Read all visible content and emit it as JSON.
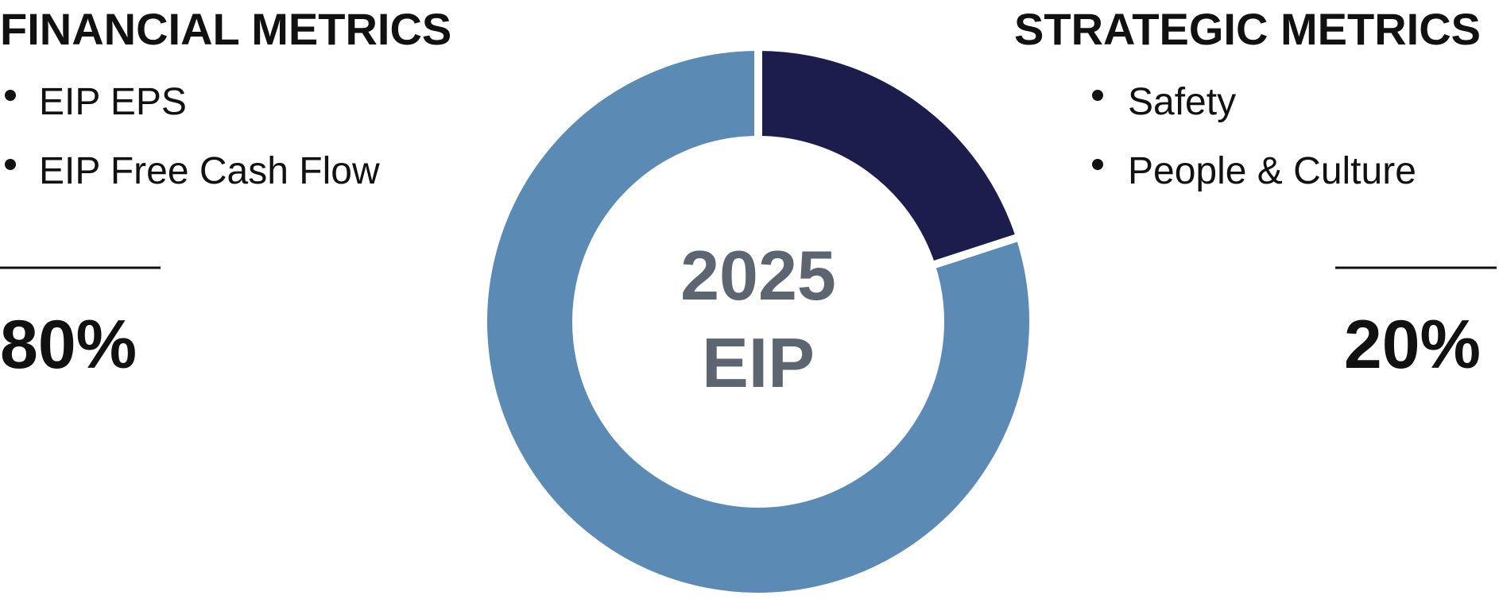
{
  "chart_data": {
    "type": "donut",
    "center_text": [
      "2025",
      "EIP"
    ],
    "categories": [
      "FINANCIAL METRICS",
      "STRATEGIC METRICS"
    ],
    "values": [
      80,
      20
    ],
    "value_labels": [
      "80%",
      "20%"
    ],
    "colors": [
      "#5b8bb5",
      "#1c1d4c"
    ],
    "details": [
      [
        "EIP EPS",
        "EIP Free Cash Flow"
      ],
      [
        "Safety",
        "People & Culture"
      ]
    ]
  }
}
